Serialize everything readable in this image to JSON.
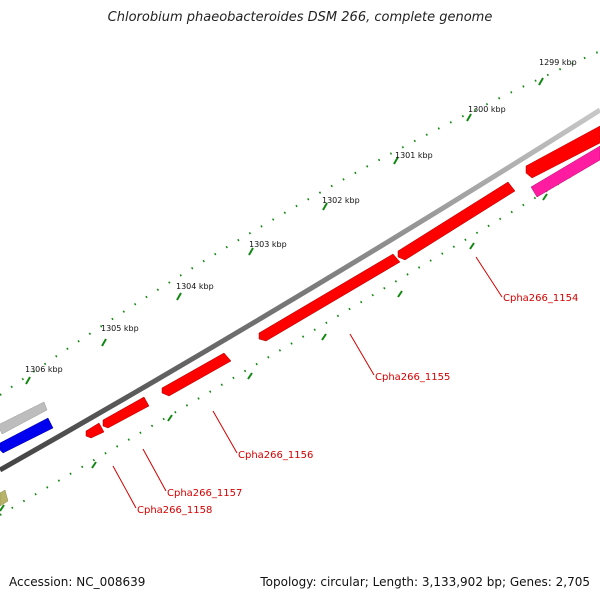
{
  "title": "Chlorobium phaeobacteroides DSM 266, complete genome",
  "footer": {
    "accession": "Accession: NC_008639",
    "summary": "Topology: circular; Length: 3,133,902 bp; Genes: 2,705"
  },
  "ticks": [
    "1299 kbp",
    "1300 kbp",
    "1301 kbp",
    "1302 kbp",
    "1303 kbp",
    "1304 kbp",
    "1305 kbp",
    "1306 kbp"
  ],
  "gene_labels": [
    "Cpha266_1154",
    "Cpha266_1155",
    "Cpha266_1156",
    "Cpha266_1157",
    "Cpha266_1158"
  ],
  "colors": {
    "gene": "#ff0000",
    "magenta_gene": "#ff1ca0",
    "blue_gene": "#0000ee",
    "gray_gene": "#bdbdbd",
    "olive_gene": "#b7b46a",
    "backbone": "#7a7a7a",
    "tick": "#118811",
    "label": "#d40000"
  }
}
